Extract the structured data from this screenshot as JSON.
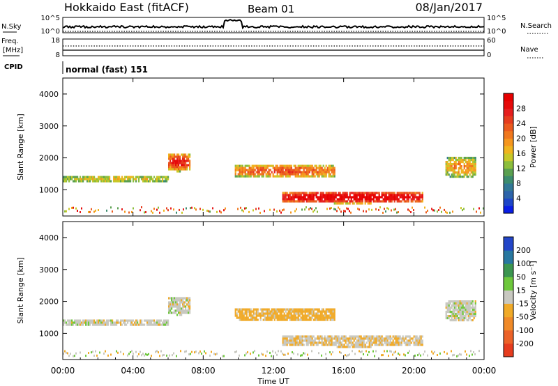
{
  "header": {
    "station": "Hokkaido East (fitACF)",
    "beam": "Beam 01",
    "date": "08/Jan/2017"
  },
  "summary_panels": {
    "nsky": {
      "label": "N.Sky",
      "tick_top": "10^5",
      "tick_bottom": "10^0",
      "right_label": "N.Search",
      "right_tick_top": "10^5",
      "right_tick_bottom": "10^0"
    },
    "freq": {
      "label_line1": "Freq.",
      "label_line2": "[MHz]",
      "tick_top": "18",
      "tick_bottom": "8",
      "right_label": "Nave",
      "right_tick_top": "60",
      "right_tick_bottom": "0"
    },
    "cpid": {
      "label": "CPID",
      "text": "normal (fast) 151"
    }
  },
  "chart_data": [
    {
      "type": "heatmap",
      "parameter": "power",
      "ylabel": "Slant Range [km]",
      "ylim": [
        180,
        4500
      ],
      "y_ticks": [
        1000,
        2000,
        3000,
        4000
      ],
      "colorbar": {
        "label": "Power [dB]",
        "range": [
          0,
          32
        ],
        "ticks": [
          "4",
          "8",
          "12",
          "16",
          "20",
          "24",
          "28"
        ],
        "colors": [
          "#0a1ee6",
          "#1e46c8",
          "#2d64aa",
          "#327896",
          "#3c8c6e",
          "#5aa050",
          "#8cbe3c",
          "#c8c828",
          "#f0b41e",
          "#f5961e",
          "#f0781e",
          "#eb5a1e",
          "#e63c1e",
          "#e61e1e",
          "#e60a0a",
          "#e60000"
        ]
      },
      "echo_regions": [
        {
          "t": [
            0.0,
            6.0
          ],
          "r": [
            1250,
            1500
          ],
          "level": 0.45
        },
        {
          "t": [
            6.0,
            7.2
          ],
          "r": [
            1600,
            2200
          ],
          "level": 0.75
        },
        {
          "t": [
            9.8,
            15.5
          ],
          "r": [
            1400,
            1850
          ],
          "level": 0.65
        },
        {
          "t": [
            12.5,
            20.5
          ],
          "r": [
            600,
            1000
          ],
          "level": 0.9
        },
        {
          "t": [
            21.8,
            23.5
          ],
          "r": [
            1400,
            2100
          ],
          "level": 0.55
        }
      ]
    },
    {
      "type": "heatmap",
      "parameter": "velocity",
      "ylabel": "Slant Range [km]",
      "ylim": [
        180,
        4500
      ],
      "y_ticks": [
        1000,
        2000,
        3000,
        4000
      ],
      "xlabel": "Time UT",
      "x_ticks": [
        "00:00",
        "04:00",
        "08:00",
        "12:00",
        "16:00",
        "20:00",
        "00:00"
      ],
      "colorbar": {
        "label": "Velocity [m s⁻¹]",
        "ticks": [
          "200",
          "100",
          "50",
          "15",
          "-15",
          "-50",
          "-100",
          "-200"
        ],
        "colors": [
          "#2346c8",
          "#2878a0",
          "#3c9650",
          "#6ec83c",
          "#c8c8c0",
          "#f0aa28",
          "#f08a28",
          "#ec6228",
          "#e63c1e"
        ]
      },
      "echo_regions": [
        {
          "t": [
            0.0,
            6.0
          ],
          "r": [
            1250,
            1500
          ],
          "velocity": 0
        },
        {
          "t": [
            6.0,
            7.2
          ],
          "r": [
            1600,
            2200
          ],
          "velocity": 0
        },
        {
          "t": [
            9.8,
            15.5
          ],
          "r": [
            1400,
            1850
          ],
          "velocity": -30
        },
        {
          "t": [
            12.5,
            20.5
          ],
          "r": [
            600,
            1000
          ],
          "velocity": -10
        },
        {
          "t": [
            21.8,
            23.5
          ],
          "r": [
            1400,
            2100
          ],
          "velocity": 0
        }
      ]
    }
  ]
}
